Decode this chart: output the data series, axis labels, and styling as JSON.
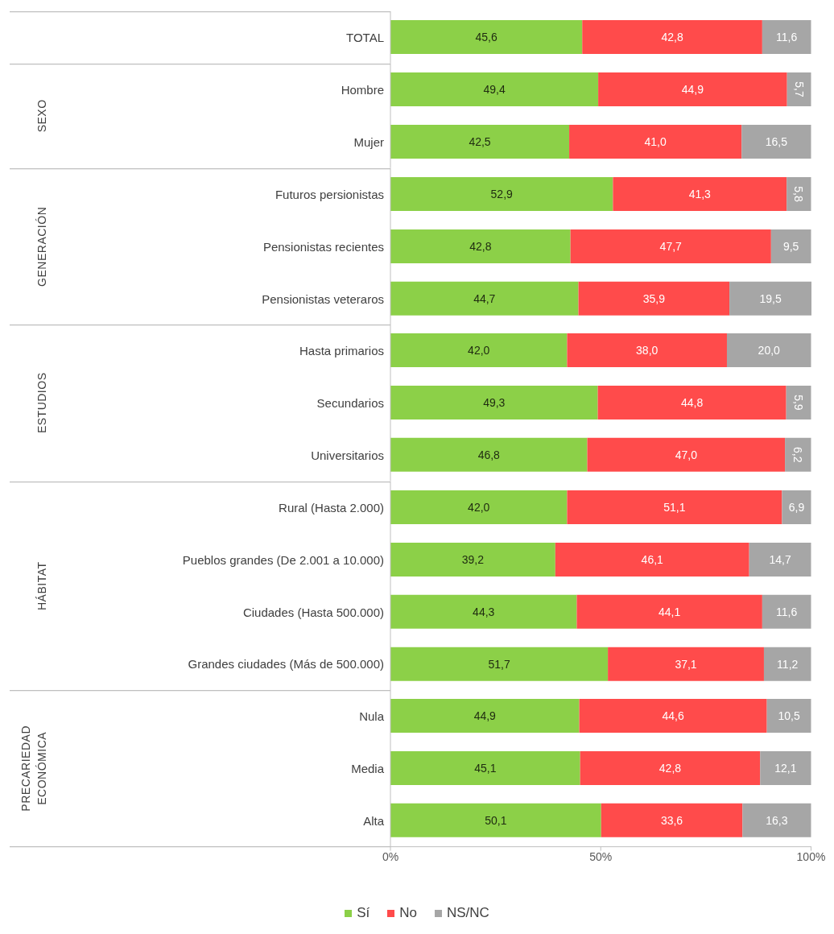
{
  "chart_data": [
    {
      "type": "bar",
      "orientation": "horizontal",
      "stacked": true,
      "categories": [
        "TOTAL"
      ],
      "series": [
        {
          "color": "#8cd048",
          "values": [
            45.6
          ],
          "value_labels": [
            "45,6"
          ]
        },
        {
          "color": "#ff4b4b",
          "values": [
            42.8
          ],
          "value_labels": [
            "42,8"
          ]
        },
        {
          "color": "#a6a6a6",
          "values": [
            11.6
          ],
          "value_labels": [
            "11,6"
          ]
        }
      ],
      "xlim": [
        0,
        100.1
      ],
      "tick_labels": "y"
    },
    {
      "type": "bar",
      "orientation": "horizontal",
      "stacked": true,
      "ylabel": "SEXO",
      "categories": [
        "Hombre",
        "Mujer"
      ],
      "series": [
        {
          "color": "#8cd048",
          "values": [
            49.4,
            42.5
          ],
          "value_labels": [
            "49,4",
            "42,5"
          ]
        },
        {
          "color": "#ff4b4b",
          "values": [
            44.9,
            41.0
          ],
          "value_labels": [
            "44,9",
            "41,0"
          ]
        },
        {
          "color": "#a6a6a6",
          "values": [
            5.7,
            16.5
          ],
          "value_labels": [
            "5,7",
            "16,5"
          ]
        }
      ],
      "xlim": [
        0,
        100.1
      ],
      "tick_labels": "y"
    },
    {
      "type": "bar",
      "orientation": "horizontal",
      "stacked": true,
      "ylabel": "GENERACIÓN",
      "categories": [
        "Futuros persionistas",
        "Pensionistas recientes",
        "Pensionistas veteraros"
      ],
      "series": [
        {
          "color": "#8cd048",
          "values": [
            52.9,
            42.8,
            44.7
          ],
          "value_labels": [
            "52,9",
            "42,8",
            "44,7"
          ]
        },
        {
          "color": "#ff4b4b",
          "values": [
            41.3,
            47.7,
            35.9
          ],
          "value_labels": [
            "41,3",
            "47,7",
            "35,9"
          ]
        },
        {
          "color": "#a6a6a6",
          "values": [
            5.8,
            9.5,
            19.5
          ],
          "value_labels": [
            "5,8",
            "9,5",
            "19,5"
          ]
        }
      ],
      "xlim": [
        0,
        100.1
      ],
      "tick_labels": "y"
    },
    {
      "type": "bar",
      "orientation": "horizontal",
      "stacked": true,
      "ylabel": "ESTUDIOS",
      "categories": [
        "Hasta primarios",
        "Secundarios",
        "Universitarios"
      ],
      "series": [
        {
          "color": "#8cd048",
          "values": [
            42.0,
            49.3,
            46.8
          ],
          "value_labels": [
            "42,0",
            "49,3",
            "46,8"
          ]
        },
        {
          "color": "#ff4b4b",
          "values": [
            38.0,
            44.8,
            47.0
          ],
          "value_labels": [
            "38,0",
            "44,8",
            "47,0"
          ]
        },
        {
          "color": "#a6a6a6",
          "values": [
            20.0,
            5.9,
            6.2
          ],
          "value_labels": [
            "20,0",
            "5,9",
            "6,2"
          ]
        }
      ],
      "xlim": [
        0,
        100.1
      ],
      "tick_labels": "y"
    },
    {
      "type": "bar",
      "orientation": "horizontal",
      "stacked": true,
      "ylabel": "HÁBITAT",
      "categories": [
        "Rural (Hasta 2.000)",
        "Pueblos grandes (De 2.001 a 10.000)",
        "Ciudades (Hasta 500.000)",
        "Grandes ciudades (Más de 500.000)"
      ],
      "series": [
        {
          "color": "#8cd048",
          "values": [
            42.0,
            39.2,
            44.3,
            51.7
          ],
          "value_labels": [
            "42,0",
            "39,2",
            "44,3",
            "51,7"
          ]
        },
        {
          "color": "#ff4b4b",
          "values": [
            51.1,
            46.1,
            44.1,
            37.1
          ],
          "value_labels": [
            "51,1",
            "46,1",
            "44,1",
            "37,1"
          ]
        },
        {
          "color": "#a6a6a6",
          "values": [
            6.9,
            14.7,
            11.6,
            11.2
          ],
          "value_labels": [
            "6,9",
            "14,7",
            "11,6",
            "11,2"
          ]
        }
      ],
      "xlim": [
        0,
        100.1
      ],
      "tick_labels": "y"
    },
    {
      "type": "bar",
      "orientation": "horizontal",
      "stacked": true,
      "ylabel": "PRECARIEDAD ECONÓMICA",
      "categories": [
        "Nula",
        "Media",
        "Alta"
      ],
      "series": [
        {
          "name": "Sí",
          "color": "#8cd048",
          "values": [
            44.9,
            45.1,
            50.1
          ],
          "value_labels": [
            "44,9",
            "45,1",
            "50,1"
          ]
        },
        {
          "name": "No",
          "color": "#ff4b4b",
          "values": [
            44.6,
            42.8,
            33.6
          ],
          "value_labels": [
            "44,6",
            "42,8",
            "33,6"
          ]
        },
        {
          "name": "NS/NC",
          "color": "#a6a6a6",
          "values": [
            10.5,
            12.1,
            16.3
          ],
          "value_labels": [
            "10,5",
            "12,1",
            "16,3"
          ]
        }
      ],
      "xlim": [
        0,
        100.1
      ],
      "xticks": [
        {
          "value": 0,
          "label": "0%"
        },
        {
          "value": 50,
          "label": "50%"
        },
        {
          "value": 100,
          "label": "100%"
        }
      ],
      "legend": "bottom"
    }
  ]
}
